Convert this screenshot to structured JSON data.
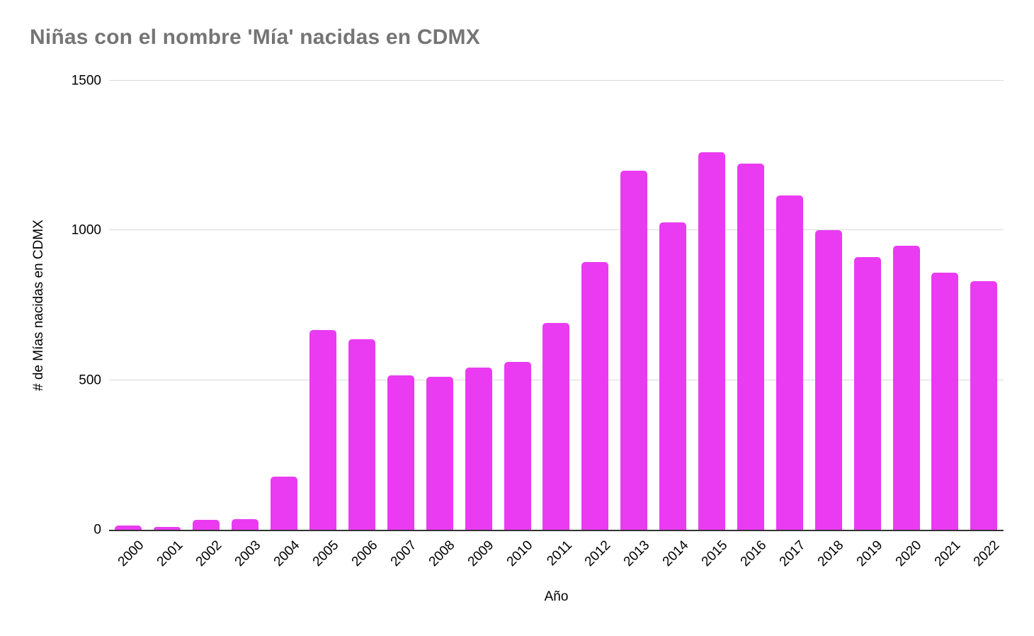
{
  "chart_data": {
    "type": "bar",
    "title": "Niñas con el nombre 'Mía' nacidas en CDMX",
    "xlabel": "Año",
    "ylabel": "# de Mías nacidas en CDMX",
    "categories": [
      "2000",
      "2001",
      "2002",
      "2003",
      "2004",
      "2005",
      "2006",
      "2007",
      "2008",
      "2009",
      "2010",
      "2011",
      "2012",
      "2013",
      "2014",
      "2015",
      "2016",
      "2017",
      "2018",
      "2019",
      "2020",
      "2021",
      "2022"
    ],
    "values": [
      15,
      10,
      34,
      36,
      178,
      668,
      637,
      515,
      510,
      542,
      560,
      690,
      894,
      1200,
      1026,
      1262,
      1224,
      1116,
      1000,
      911,
      949,
      858,
      831
    ],
    "ylim": [
      0,
      1500
    ],
    "yticks": [
      0,
      500,
      1000,
      1500
    ],
    "grid": true,
    "legend_position": "none",
    "bar_color": "#EA3BF2",
    "title_color": "#757575",
    "gridline_color": "#dadada",
    "axis_line_color": "#333333"
  }
}
